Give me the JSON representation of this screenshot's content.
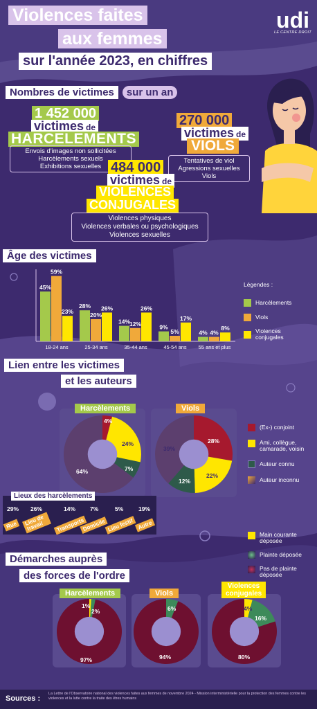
{
  "header": {
    "title_line1": "Violences faites",
    "title_line2": "aux femmes",
    "subtitle": "sur l'année 2023, en chiffres",
    "logo": "udi",
    "logo_tagline": "LE CENTRE DROIT"
  },
  "victims": {
    "section_title": "Nombres de victimes",
    "section_badge": "sur un an",
    "harcelements": {
      "number": "1 452 000",
      "victims_word": "victimes",
      "de": "de",
      "category": "HARCELEMENTS",
      "items": [
        "Envois d'images non sollicitées",
        "Harcèlements sexuels",
        "Exhibitions sexuelles"
      ]
    },
    "viols": {
      "number": "270 000",
      "victims_word": "victimes",
      "de": "de",
      "category": "VIOLS",
      "items": [
        "Tentatives de viol",
        "Agressions sexuelles",
        "Viols"
      ]
    },
    "conjugales": {
      "number": "484 000",
      "victims_word": "victimes",
      "de": "de",
      "category_line1": "VIOLENCES",
      "category_line2": "CONJUGALES",
      "items": [
        "Violences physiques",
        "Violences verbales ou psychologiques",
        "Violences sexuelles"
      ]
    }
  },
  "age_section": {
    "title": "Âge des victimes",
    "legend_title": "Légendes :",
    "legend": [
      {
        "label": "Harcèlements",
        "color": "#a4c94b"
      },
      {
        "label": "Viols",
        "color": "#f0a93a"
      },
      {
        "label": "Violences conjugales",
        "color": "#ffe600"
      }
    ]
  },
  "chart_data": [
    {
      "type": "bar",
      "title": "Âge des victimes",
      "categories": [
        "18-24 ans",
        "25-34 ans",
        "35-44 ans",
        "45-54 ans",
        "55 ans et plus"
      ],
      "series": [
        {
          "name": "Harcèlements",
          "color": "#a4c94b",
          "values": [
            45,
            28,
            14,
            9,
            4
          ]
        },
        {
          "name": "Viols",
          "color": "#f0a93a",
          "values": [
            59,
            20,
            12,
            5,
            4
          ]
        },
        {
          "name": "Violences conjugales",
          "color": "#ffe600",
          "values": [
            23,
            26,
            26,
            17,
            8
          ]
        }
      ],
      "ylim": [
        0,
        60
      ]
    },
    {
      "type": "pie",
      "title": "Harcèlements",
      "labels": [
        "(Ex-) conjoint",
        "Ami, collègue, camarade, voisin",
        "Auteur connu",
        "Auteur inconnu"
      ],
      "values": [
        4,
        24,
        7,
        64
      ]
    },
    {
      "type": "pie",
      "title": "Viols",
      "labels": [
        "(Ex-) conjoint",
        "Ami, collègue, camarade, voisin",
        "Auteur connu",
        "Auteur inconnu"
      ],
      "values": [
        28,
        22,
        12,
        39
      ]
    },
    {
      "type": "pie",
      "title": "Harcèlements",
      "labels": [
        "Main courante déposée",
        "Plainte déposée",
        "Pas de plainte déposée"
      ],
      "values": [
        1,
        2,
        97
      ]
    },
    {
      "type": "pie",
      "title": "Viols",
      "labels": [
        "Main courante déposée",
        "Plainte déposée",
        "Pas de plainte déposée"
      ],
      "values": [
        0,
        6,
        94
      ]
    },
    {
      "type": "pie",
      "title": "Violences conjugales",
      "labels": [
        "Main courante déposée",
        "Plainte déposée",
        "Pas de plainte déposée"
      ],
      "values": [
        4,
        16,
        80
      ]
    }
  ],
  "bar_labels": [
    "45%",
    "59%",
    "23%",
    "28%",
    "20%",
    "26%",
    "14%",
    "12%",
    "26%",
    "9%",
    "5%",
    "17%",
    "4%",
    "4%",
    "8%"
  ],
  "lien": {
    "title_line1": "Lien entre les victimes",
    "title_line2": "et les auteurs",
    "harc_label": "Harcèlements",
    "viols_label": "Viols",
    "harc_pcts": [
      "4%",
      "24%",
      "7%",
      "64%"
    ],
    "viols_pcts": [
      "28%",
      "22%",
      "12%",
      "39%"
    ],
    "legend": [
      {
        "label": "(Ex-) conjoint",
        "color": "#a6192e"
      },
      {
        "label": "Ami, collègue, camarade, voisin",
        "color": "#ffe600"
      },
      {
        "label": "Auteur connu",
        "color": "#2e5a4a"
      },
      {
        "label": "Auteur inconnu",
        "color": "#3d2a6e"
      }
    ]
  },
  "lieux": {
    "title": "Lieux des harcèlements",
    "items": [
      {
        "pct": "29%",
        "label": "Rue"
      },
      {
        "pct": "26%",
        "label": "Lieu de travail"
      },
      {
        "pct": "14%",
        "label": "Transports"
      },
      {
        "pct": "7%",
        "label": "Domicile"
      },
      {
        "pct": "5%",
        "label": "Lieu festif"
      },
      {
        "pct": "19%",
        "label": "Autre"
      }
    ]
  },
  "demarches": {
    "title_line1": "Démarches auprès",
    "title_line2": "des forces de l'ordre",
    "legend": [
      {
        "label": "Main courante déposée",
        "color": "#ffe600"
      },
      {
        "label": "Plainte déposée",
        "color": "#3d8a5a"
      },
      {
        "label": "Pas de plainte déposée",
        "color": "#6e1030"
      }
    ],
    "harc_label": "Harcèlements",
    "viols_label": "Viols",
    "conj_label": "Violences conjugales",
    "harc_pcts": [
      "1%",
      "2%",
      "97%"
    ],
    "viols_pcts": [
      "6%",
      "94%"
    ],
    "conj_pcts": [
      "4%",
      "16%",
      "80%"
    ]
  },
  "sources": {
    "label": "Sources :",
    "text": "La Lettre de l'Observatoire national des violences faites aux femmes de novembre 2024 - Mission interministérielle pour la protection des femmes contre les violences et la lutte contre la traite des êtres humains"
  }
}
